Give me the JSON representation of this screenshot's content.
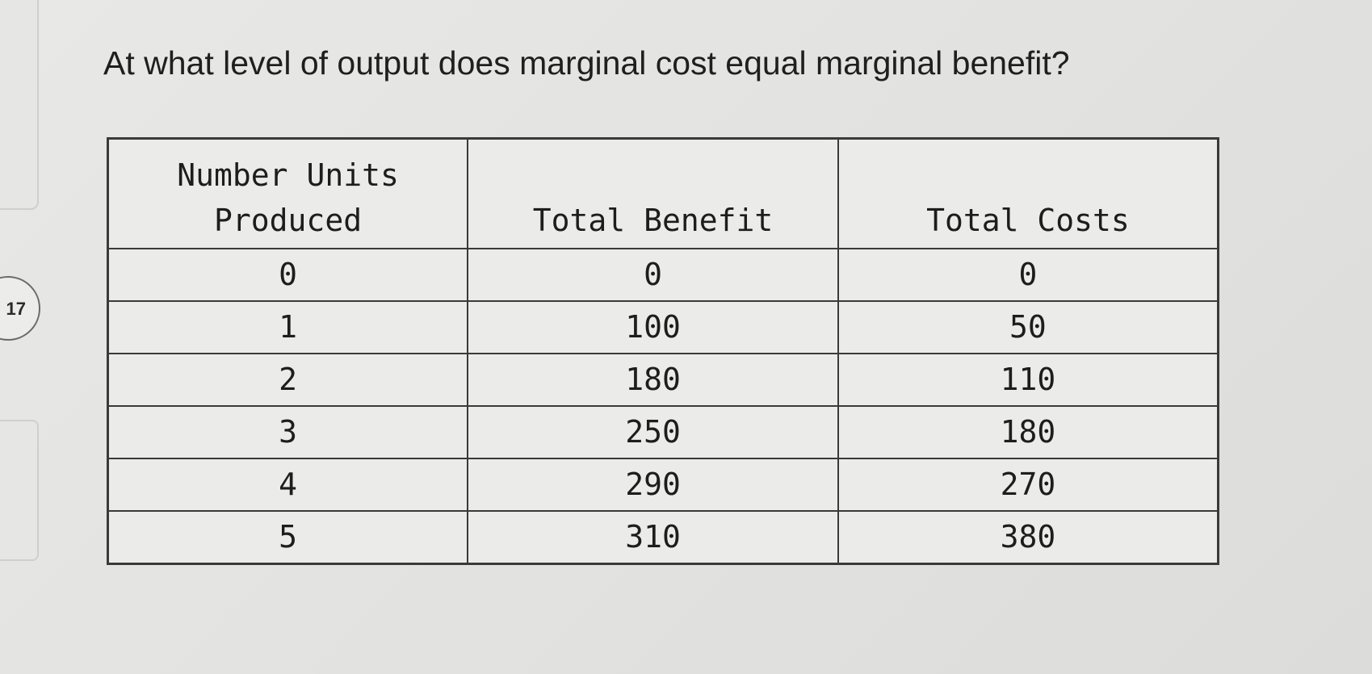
{
  "question": {
    "number": "17",
    "text": "At what level of output does marginal cost equal marginal benefit?"
  },
  "table": {
    "headers": {
      "units_line1": "Number Units",
      "units_line2": "Produced",
      "benefit": "Total Benefit",
      "costs": "Total Costs"
    },
    "rows": [
      {
        "units": "0",
        "benefit": "0",
        "costs": "0"
      },
      {
        "units": "1",
        "benefit": "100",
        "costs": "50"
      },
      {
        "units": "2",
        "benefit": "180",
        "costs": "110"
      },
      {
        "units": "3",
        "benefit": "250",
        "costs": "180"
      },
      {
        "units": "4",
        "benefit": "290",
        "costs": "270"
      },
      {
        "units": "5",
        "benefit": "310",
        "costs": "380"
      }
    ]
  }
}
